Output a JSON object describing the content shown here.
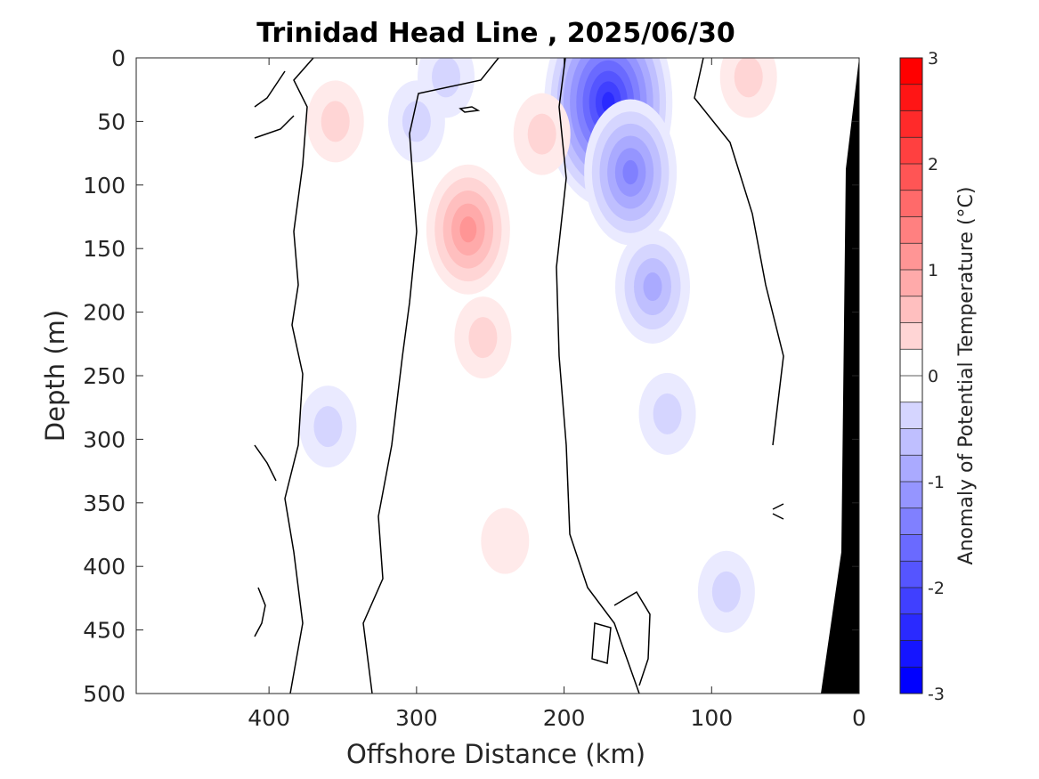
{
  "chart_data": {
    "type": "heatmap",
    "title": "Trinidad Head Line , 2025/06/30",
    "xlabel": "Offshore Distance (km)",
    "ylabel": "Depth (m)",
    "colorbar_label": "Anomaly of Potential Temperature (°C)",
    "xlim": [
      490,
      0
    ],
    "ylim": [
      0,
      500
    ],
    "x_ticks": [
      400,
      300,
      200,
      100,
      0
    ],
    "y_ticks": [
      0,
      50,
      100,
      150,
      200,
      250,
      300,
      350,
      400,
      450,
      500
    ],
    "colorbar_range": [
      -3,
      3
    ],
    "colorbar_ticks": [
      3,
      2,
      1,
      0,
      -1,
      -2,
      -3
    ],
    "colorbar_step": 0.25,
    "data_extent_x": [
      410,
      50
    ],
    "colors": {
      "positive": "#ff0000",
      "negative": "#0000ff",
      "bathymetry": "#000000",
      "zero_contour": "#000000"
    },
    "features": [
      {
        "kind": "cold",
        "x": 170,
        "depth": 35,
        "anomaly": -2.5
      },
      {
        "kind": "cold",
        "x": 155,
        "depth": 90,
        "anomaly": -1.6
      },
      {
        "kind": "cold",
        "x": 140,
        "depth": 180,
        "anomaly": -0.9
      },
      {
        "kind": "cold",
        "x": 130,
        "depth": 280,
        "anomaly": -0.4
      },
      {
        "kind": "cold",
        "x": 280,
        "depth": 15,
        "anomaly": -0.5
      },
      {
        "kind": "cold",
        "x": 300,
        "depth": 50,
        "anomaly": -0.6
      },
      {
        "kind": "cold",
        "x": 360,
        "depth": 290,
        "anomaly": -0.5
      },
      {
        "kind": "cold",
        "x": 90,
        "depth": 420,
        "anomaly": -0.4
      },
      {
        "kind": "warm",
        "x": 265,
        "depth": 135,
        "anomaly": 1.3
      },
      {
        "kind": "warm",
        "x": 255,
        "depth": 220,
        "anomaly": 0.6
      },
      {
        "kind": "warm",
        "x": 240,
        "depth": 380,
        "anomaly": 0.3
      },
      {
        "kind": "warm",
        "x": 355,
        "depth": 50,
        "anomaly": 0.6
      },
      {
        "kind": "warm",
        "x": 75,
        "depth": 15,
        "anomaly": 0.6
      },
      {
        "kind": "warm",
        "x": 215,
        "depth": 60,
        "anomaly": 0.5
      }
    ]
  }
}
